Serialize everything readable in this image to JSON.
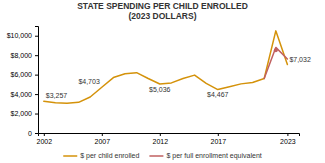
{
  "chart_data": {
    "type": "line",
    "title": "STATE SPENDING PER CHILD ENROLLED\n(2023 DOLLARS)",
    "x": [
      2002,
      2003,
      2004,
      2005,
      2006,
      2007,
      2008,
      2009,
      2010,
      2011,
      2012,
      2013,
      2014,
      2015,
      2016,
      2017,
      2018,
      2019,
      2020,
      2021,
      2022,
      2023
    ],
    "series": [
      {
        "name": "$ per child enrolled",
        "color": "#D4920A",
        "values": [
          3257,
          3100,
          3050,
          3150,
          3700,
          4703,
          5700,
          6100,
          6200,
          5600,
          5036,
          5150,
          5600,
          5950,
          5100,
          4467,
          4750,
          5050,
          5200,
          5600,
          10500,
          7032
        ]
      },
      {
        "name": "$ per full enrollment equivalent",
        "color": "#C06060",
        "values": [
          null,
          null,
          null,
          null,
          null,
          null,
          null,
          null,
          null,
          null,
          null,
          null,
          null,
          null,
          null,
          null,
          null,
          null,
          null,
          5600,
          8800,
          7600
        ]
      },
      {
        "type": "scatter",
        "marker": "circle",
        "color": "#C06060",
        "values": [
          null,
          null,
          null,
          null,
          null,
          null,
          null,
          null,
          null,
          null,
          null,
          null,
          null,
          null,
          null,
          null,
          null,
          null,
          null,
          null,
          8500,
          null
        ]
      }
    ],
    "annotations": [
      {
        "x": 2002,
        "y": 3257,
        "label": "$3,257"
      },
      {
        "x": 2007,
        "y": 4703,
        "label": "$4,703"
      },
      {
        "x": 2012,
        "y": 5036,
        "label": "$5,036"
      },
      {
        "x": 2017,
        "y": 4467,
        "label": "$4,467"
      },
      {
        "x": 2023,
        "y": 7032,
        "label": "$7,032"
      }
    ],
    "xlim": [
      2001.5,
      2024
    ],
    "ylim": [
      0,
      11000
    ],
    "xticks": [
      2002,
      2007,
      2012,
      2017,
      2023
    ],
    "yticks": [
      0,
      {
        "value": 2000,
        "label": "$2,000"
      },
      {
        "value": 4000,
        "label": "$4,000"
      },
      {
        "value": 6000,
        "label": "$6,000"
      },
      {
        "value": 8000,
        "label": "$8,000"
      },
      {
        "value": 10000,
        "label": "$10,000"
      }
    ],
    "grid": false,
    "legend": "bottom"
  }
}
